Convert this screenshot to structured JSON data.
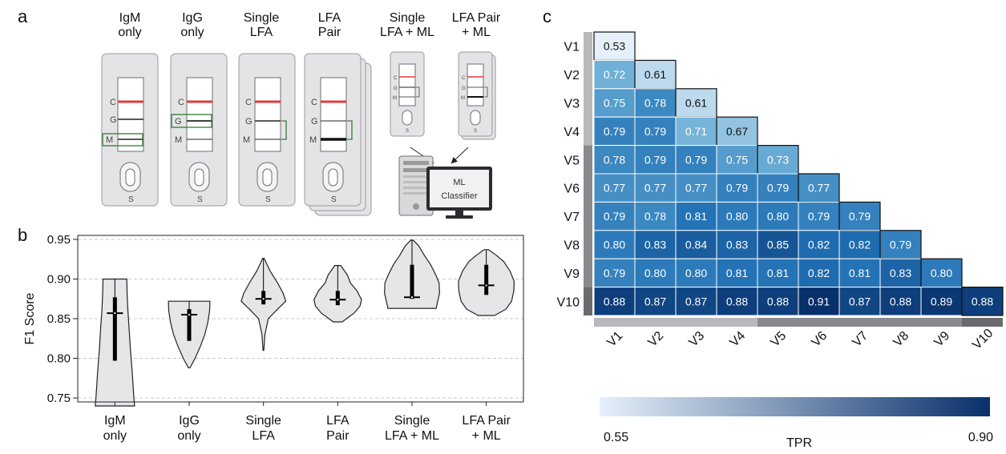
{
  "panels": {
    "a": "a",
    "b": "b",
    "c": "c"
  },
  "schematic": {
    "cards": [
      {
        "title_line1": "IgM",
        "title_line2": "only"
      },
      {
        "title_line1": "IgG",
        "title_line2": "only"
      },
      {
        "title_line1": "Single",
        "title_line2": "LFA"
      },
      {
        "title_line1": "LFA",
        "title_line2": "Pair"
      },
      {
        "title_line1": "Single",
        "title_line2": "LFA + ML"
      },
      {
        "title_line1": "LFA Pair",
        "title_line2": "+ ML"
      }
    ],
    "line_labels": {
      "c": "C",
      "g": "G",
      "m": "M",
      "s": "S"
    },
    "classifier_line1": "ML",
    "classifier_line2": "Classifier",
    "colors": {
      "control_line": "#e0393e",
      "highlight_box": "#2e7d32",
      "cassette": "#e4e4e6"
    }
  },
  "chart_data": [
    {
      "type": "violin",
      "ylabel": "F1 Score",
      "ylim": [
        0.745,
        0.955
      ],
      "yticks": [
        "0.75",
        "0.80",
        "0.85",
        "0.90",
        "0.95"
      ],
      "grid": true,
      "categories": [
        {
          "line1": "IgM",
          "line2": "only"
        },
        {
          "line1": "IgG",
          "line2": "only"
        },
        {
          "line1": "Single",
          "line2": "LFA"
        },
        {
          "line1": "LFA",
          "line2": "Pair"
        },
        {
          "line1": "Single",
          "line2": "LFA + ML"
        },
        {
          "line1": "LFA Pair",
          "line2": "+ ML"
        }
      ],
      "series": [
        {
          "min": 0.74,
          "max": 0.9,
          "q1": 0.797,
          "median": 0.857,
          "q3": 0.877,
          "profile": [
            [
              0.74,
              0.53
            ],
            [
              0.75,
              0.51
            ],
            [
              0.78,
              0.47
            ],
            [
              0.81,
              0.42
            ],
            [
              0.84,
              0.38
            ],
            [
              0.86,
              0.35
            ],
            [
              0.88,
              0.33
            ],
            [
              0.9,
              0.32
            ]
          ]
        },
        {
          "min": 0.788,
          "max": 0.872,
          "q1": 0.822,
          "median": 0.855,
          "q3": 0.862,
          "profile": [
            [
              0.788,
              0.02
            ],
            [
              0.8,
              0.16
            ],
            [
              0.815,
              0.3
            ],
            [
              0.83,
              0.42
            ],
            [
              0.845,
              0.5
            ],
            [
              0.86,
              0.55
            ],
            [
              0.872,
              0.56
            ]
          ]
        },
        {
          "min": 0.81,
          "max": 0.926,
          "q1": 0.868,
          "median": 0.875,
          "q3": 0.885,
          "profile": [
            [
              0.81,
              0.01
            ],
            [
              0.83,
              0.04
            ],
            [
              0.85,
              0.13
            ],
            [
              0.862,
              0.38
            ],
            [
              0.872,
              0.6
            ],
            [
              0.882,
              0.53
            ],
            [
              0.895,
              0.38
            ],
            [
              0.91,
              0.18
            ],
            [
              0.926,
              0.02
            ]
          ]
        },
        {
          "min": 0.846,
          "max": 0.917,
          "q1": 0.867,
          "median": 0.874,
          "q3": 0.885,
          "profile": [
            [
              0.846,
              0.12
            ],
            [
              0.857,
              0.44
            ],
            [
              0.866,
              0.6
            ],
            [
              0.874,
              0.64
            ],
            [
              0.885,
              0.52
            ],
            [
              0.895,
              0.34
            ],
            [
              0.905,
              0.26
            ],
            [
              0.917,
              0.08
            ]
          ]
        },
        {
          "min": 0.863,
          "max": 0.949,
          "q1": 0.875,
          "median": 0.877,
          "q3": 0.918,
          "profile": [
            [
              0.863,
              0.65
            ],
            [
              0.872,
              0.69
            ],
            [
              0.882,
              0.74
            ],
            [
              0.895,
              0.73
            ],
            [
              0.905,
              0.64
            ],
            [
              0.918,
              0.5
            ],
            [
              0.93,
              0.33
            ],
            [
              0.942,
              0.18
            ],
            [
              0.949,
              0.03
            ]
          ]
        },
        {
          "min": 0.854,
          "max": 0.937,
          "q1": 0.88,
          "median": 0.892,
          "q3": 0.918,
          "profile": [
            [
              0.854,
              0.22
            ],
            [
              0.862,
              0.53
            ],
            [
              0.872,
              0.68
            ],
            [
              0.885,
              0.74
            ],
            [
              0.897,
              0.75
            ],
            [
              0.91,
              0.64
            ],
            [
              0.922,
              0.47
            ],
            [
              0.93,
              0.27
            ],
            [
              0.937,
              0.06
            ]
          ]
        }
      ]
    },
    {
      "type": "heatmap",
      "row_labels": [
        "V1",
        "V2",
        "V3",
        "V4",
        "V5",
        "V6",
        "V7",
        "V8",
        "V9",
        "V10"
      ],
      "col_labels": [
        "V1",
        "V2",
        "V3",
        "V4",
        "V5",
        "V6",
        "V7",
        "V8",
        "V9",
        "V10"
      ],
      "values": [
        [
          "0.53"
        ],
        [
          "0.72",
          "0.61"
        ],
        [
          "0.75",
          "0.78",
          "0.61"
        ],
        [
          "0.79",
          "0.79",
          "0.71",
          "0.67"
        ],
        [
          "0.78",
          "0.79",
          "0.79",
          "0.75",
          "0.73"
        ],
        [
          "0.77",
          "0.77",
          "0.77",
          "0.79",
          "0.79",
          "0.77"
        ],
        [
          "0.79",
          "0.78",
          "0.81",
          "0.80",
          "0.80",
          "0.79",
          "0.79"
        ],
        [
          "0.80",
          "0.83",
          "0.84",
          "0.83",
          "0.85",
          "0.82",
          "0.82",
          "0.79"
        ],
        [
          "0.79",
          "0.80",
          "0.80",
          "0.81",
          "0.81",
          "0.82",
          "0.81",
          "0.83",
          "0.80"
        ],
        [
          "0.88",
          "0.87",
          "0.87",
          "0.88",
          "0.88",
          "0.91",
          "0.87",
          "0.88",
          "0.89",
          "0.88"
        ]
      ],
      "colorbar": {
        "label": "TPR",
        "min": 0.55,
        "max": 0.9,
        "min_label": "0.55",
        "max_label": "0.90",
        "low_color": "#e6f0fa",
        "high_color": "#08306b"
      }
    }
  ]
}
